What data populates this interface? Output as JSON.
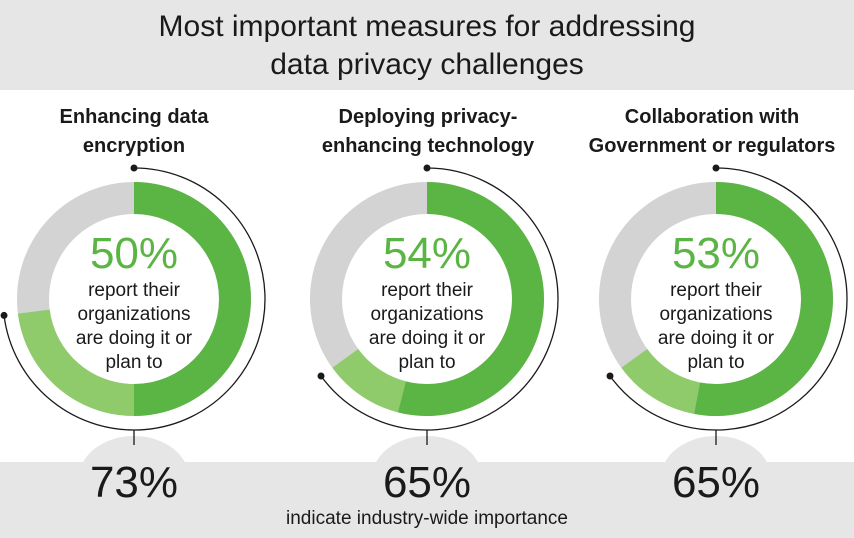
{
  "title_lines": [
    "Most important measures for addressing",
    "data privacy challenges"
  ],
  "colors": {
    "dark_green": "#5bb544",
    "light_green": "#8fcb6b",
    "gray_ring": "#d3d3d3",
    "band_gray": "#e6e6e6",
    "text": "#1a1a1a"
  },
  "chart_data": {
    "type": "donut",
    "panels": [
      {
        "heading_lines": [
          "Enhancing data",
          "encryption"
        ],
        "doing_or_plan_pct": 50,
        "doing_or_plan_label": "50%",
        "description_lines": [
          "report their",
          "organizations",
          "are doing it or",
          "plan to"
        ],
        "importance_pct": 73,
        "importance_label": "73%"
      },
      {
        "heading_lines": [
          "Deploying privacy-",
          "enhancing technology"
        ],
        "doing_or_plan_pct": 54,
        "doing_or_plan_label": "54%",
        "description_lines": [
          "report their",
          "organizations",
          "are doing it or",
          "plan to"
        ],
        "importance_pct": 65,
        "importance_label": "65%"
      },
      {
        "heading_lines": [
          "Collaboration with",
          "Government or regulators"
        ],
        "doing_or_plan_pct": 53,
        "doing_or_plan_label": "53%",
        "description_lines": [
          "report their",
          "organizations",
          "are doing it or",
          "plan to"
        ],
        "importance_pct": 65,
        "importance_label": "65%"
      }
    ],
    "footnote": "indicate industry-wide importance"
  }
}
